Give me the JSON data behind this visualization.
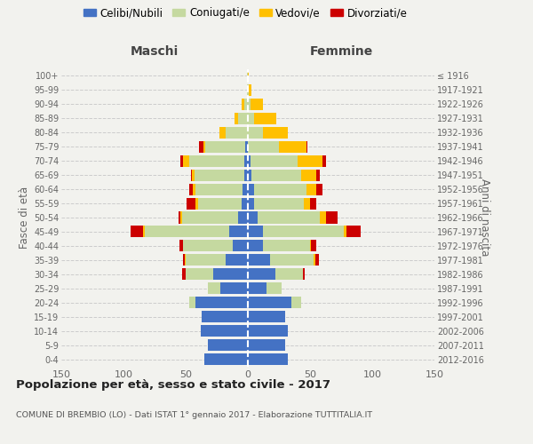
{
  "age_groups": [
    "0-4",
    "5-9",
    "10-14",
    "15-19",
    "20-24",
    "25-29",
    "30-34",
    "35-39",
    "40-44",
    "45-49",
    "50-54",
    "55-59",
    "60-64",
    "65-69",
    "70-74",
    "75-79",
    "80-84",
    "85-89",
    "90-94",
    "95-99",
    "100+"
  ],
  "birth_years": [
    "2012-2016",
    "2007-2011",
    "2002-2006",
    "1997-2001",
    "1992-1996",
    "1987-1991",
    "1982-1986",
    "1977-1981",
    "1972-1976",
    "1967-1971",
    "1962-1966",
    "1957-1961",
    "1952-1956",
    "1947-1951",
    "1942-1946",
    "1937-1941",
    "1932-1936",
    "1927-1931",
    "1922-1926",
    "1917-1921",
    "≤ 1916"
  ],
  "male": {
    "celibi": [
      35,
      32,
      38,
      37,
      42,
      22,
      28,
      18,
      12,
      15,
      8,
      5,
      4,
      3,
      3,
      2,
      0,
      0,
      0,
      0,
      0
    ],
    "coniugati": [
      0,
      0,
      0,
      0,
      5,
      10,
      22,
      32,
      40,
      68,
      45,
      35,
      38,
      40,
      44,
      32,
      18,
      8,
      3,
      1,
      1
    ],
    "vedovi": [
      0,
      0,
      0,
      0,
      0,
      0,
      0,
      1,
      0,
      1,
      1,
      2,
      2,
      2,
      5,
      2,
      5,
      3,
      2,
      0,
      0
    ],
    "divorziati": [
      0,
      0,
      0,
      0,
      0,
      0,
      3,
      1,
      3,
      10,
      2,
      7,
      3,
      1,
      2,
      3,
      0,
      0,
      0,
      0,
      0
    ]
  },
  "female": {
    "nubili": [
      32,
      30,
      32,
      30,
      35,
      15,
      22,
      18,
      12,
      12,
      8,
      5,
      5,
      3,
      2,
      0,
      0,
      0,
      0,
      0,
      0
    ],
    "coniugate": [
      0,
      0,
      0,
      0,
      8,
      12,
      22,
      35,
      38,
      65,
      50,
      40,
      42,
      40,
      38,
      25,
      12,
      5,
      2,
      1,
      0
    ],
    "vedove": [
      0,
      0,
      0,
      0,
      0,
      0,
      0,
      1,
      1,
      2,
      5,
      5,
      8,
      12,
      20,
      22,
      20,
      18,
      10,
      2,
      1
    ],
    "divorziate": [
      0,
      0,
      0,
      0,
      0,
      0,
      2,
      3,
      4,
      12,
      9,
      5,
      5,
      3,
      3,
      1,
      0,
      0,
      0,
      0,
      0
    ]
  },
  "colors": {
    "celibi": "#4472c4",
    "coniugati": "#c5d9a0",
    "vedovi": "#ffc000",
    "divorziati": "#cc0000"
  },
  "title": "Popolazione per età, sesso e stato civile - 2017",
  "subtitle": "COMUNE DI BREMBIO (LO) - Dati ISTAT 1° gennaio 2017 - Elaborazione TUTTITALIA.IT",
  "header_left": "Maschi",
  "header_right": "Femmine",
  "ylabel_left": "Fasce di età",
  "ylabel_right": "Anni di nascita",
  "xlim": 150,
  "bg_color": "#f2f2ee",
  "grid_color": "#cccccc"
}
